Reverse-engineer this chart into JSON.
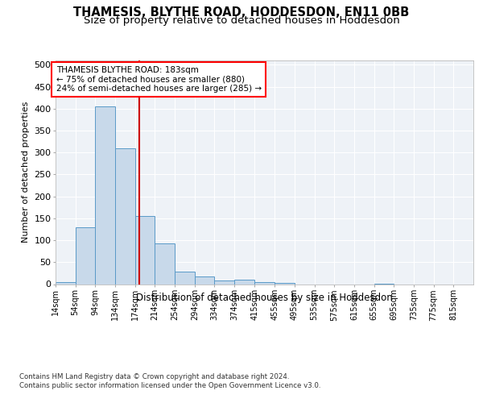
{
  "title": "THAMESIS, BLYTHE ROAD, HODDESDON, EN11 0BB",
  "subtitle": "Size of property relative to detached houses in Hoddesdon",
  "xlabel": "Distribution of detached houses by size in Hoddesdon",
  "ylabel": "Number of detached properties",
  "footnote1": "Contains HM Land Registry data © Crown copyright and database right 2024.",
  "footnote2": "Contains public sector information licensed under the Open Government Licence v3.0.",
  "annotation_line1": "THAMESIS BLYTHE ROAD: 183sqm",
  "annotation_line2": "← 75% of detached houses are smaller (880)",
  "annotation_line3": "24% of semi-detached houses are larger (285) →",
  "bar_color": "#c8d9ea",
  "bar_edge_color": "#5a9ac8",
  "vline_color": "#cc0000",
  "vline_x": 183,
  "categories": [
    "14sqm",
    "54sqm",
    "94sqm",
    "134sqm",
    "174sqm",
    "214sqm",
    "254sqm",
    "294sqm",
    "334sqm",
    "374sqm",
    "415sqm",
    "455sqm",
    "495sqm",
    "535sqm",
    "575sqm",
    "615sqm",
    "655sqm",
    "695sqm",
    "735sqm",
    "775sqm",
    "815sqm"
  ],
  "bin_edges": [
    14,
    54,
    94,
    134,
    174,
    214,
    254,
    294,
    334,
    374,
    415,
    455,
    495,
    535,
    575,
    615,
    655,
    695,
    735,
    775,
    815,
    855
  ],
  "values": [
    5,
    130,
    405,
    310,
    155,
    92,
    28,
    18,
    9,
    11,
    5,
    3,
    0,
    0,
    0,
    0,
    1,
    0,
    0,
    0,
    0
  ],
  "ylim": [
    0,
    510
  ],
  "yticks": [
    0,
    50,
    100,
    150,
    200,
    250,
    300,
    350,
    400,
    450,
    500
  ],
  "background_color": "#eef2f7",
  "fig_background": "#ffffff",
  "grid_color": "#ffffff",
  "title_fontsize": 10.5,
  "subtitle_fontsize": 9.5
}
